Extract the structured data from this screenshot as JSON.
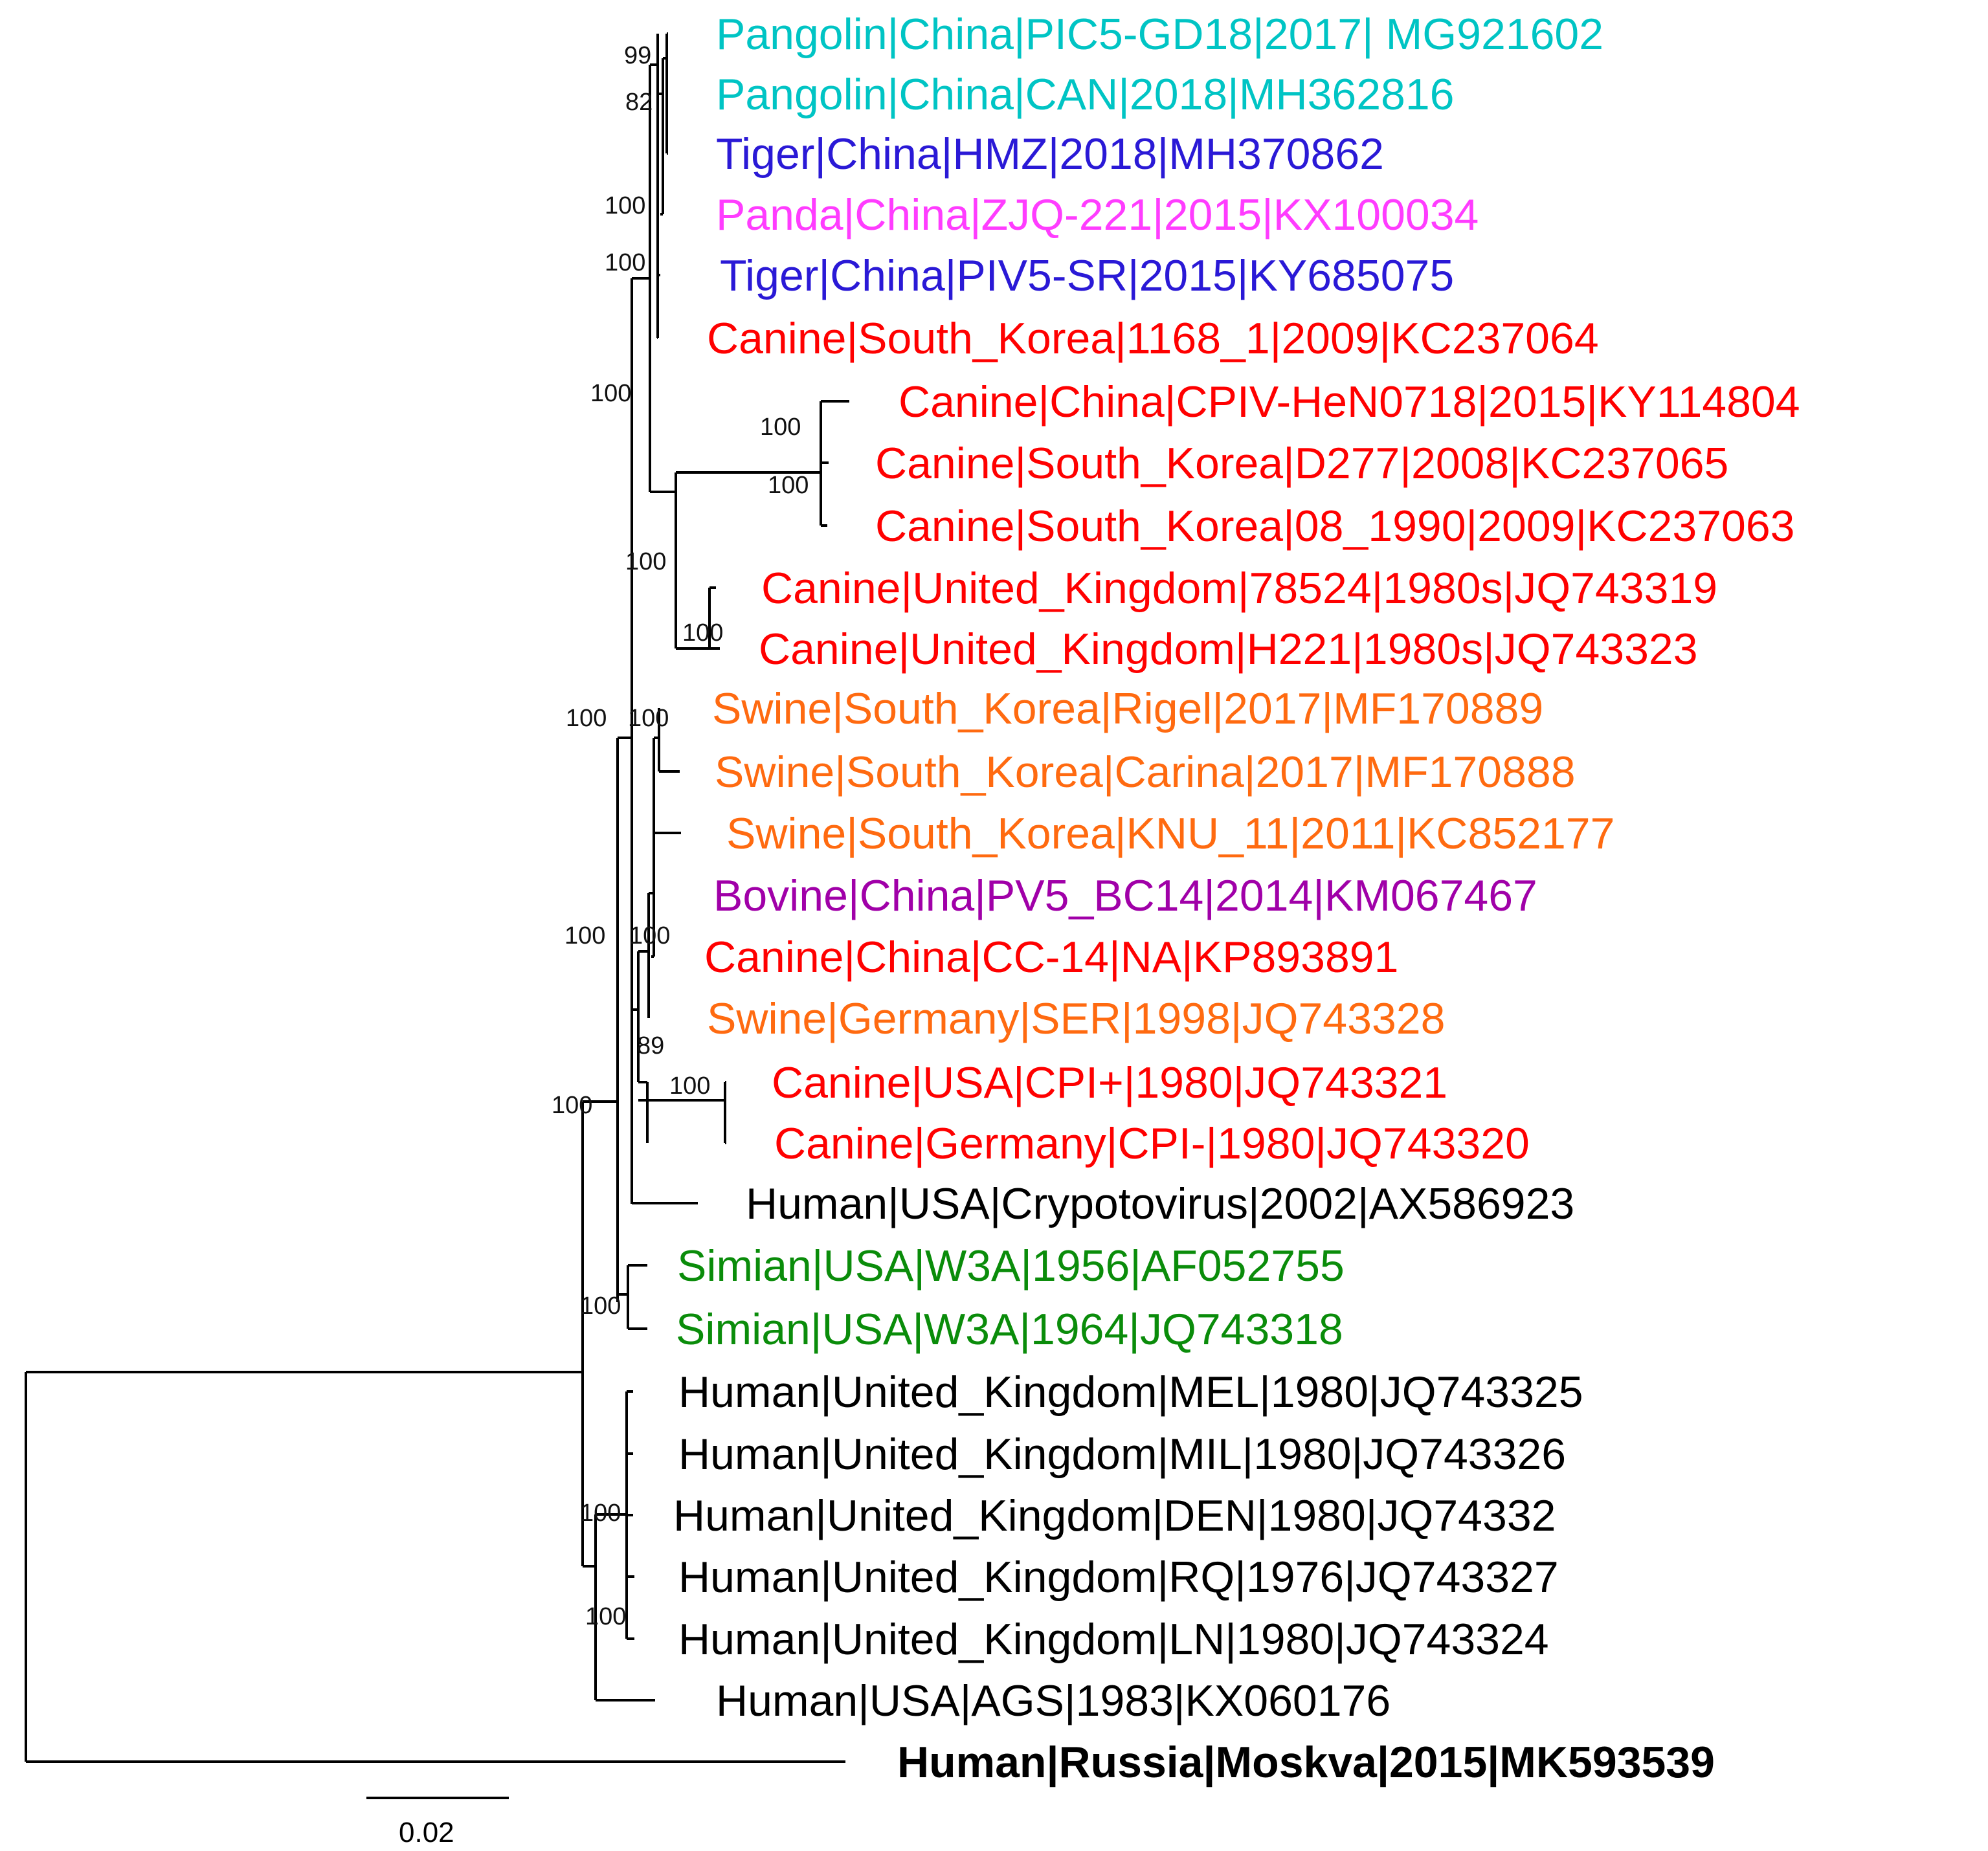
{
  "colors": {
    "pangolin": "#00c4c4",
    "tiger": "#2a19d6",
    "panda": "#ff3cff",
    "canine": "#ff0000",
    "swine": "#ff6a10",
    "bovine": "#a000a8",
    "simian": "#0a8c0a",
    "human": "#000000"
  },
  "taxa": [
    {
      "label": "Pangolin|China|PIC5-GD18|2017| MG921602",
      "group": "pangolin",
      "bold": false
    },
    {
      "label": "Pangolin|China|CAN|2018|MH362816",
      "group": "pangolin",
      "bold": false
    },
    {
      "label": "Tiger|China|HMZ|2018|MH370862",
      "group": "tiger",
      "bold": false
    },
    {
      "label": "Panda|China|ZJQ-221|2015|KX100034",
      "group": "panda",
      "bold": false
    },
    {
      "label": "Tiger|China|PIV5-SR|2015|KY685075",
      "group": "tiger",
      "bold": false
    },
    {
      "label": "Canine|South_Korea|1168_1|2009|KC237064",
      "group": "canine",
      "bold": false
    },
    {
      "label": "Canine|China|CPIV-HeN0718|2015|KY114804",
      "group": "canine",
      "bold": false
    },
    {
      "label": "Canine|South_Korea|D277|2008|KC237065",
      "group": "canine",
      "bold": false
    },
    {
      "label": "Canine|South_Korea|08_1990|2009|KC237063",
      "group": "canine",
      "bold": false
    },
    {
      "label": "Canine|United_Kingdom|78524|1980s|JQ743319",
      "group": "canine",
      "bold": false
    },
    {
      "label": "Canine|United_Kingdom|H221|1980s|JQ743323",
      "group": "canine",
      "bold": false
    },
    {
      "label": "Swine|South_Korea|Rigel|2017|MF170889",
      "group": "swine",
      "bold": false
    },
    {
      "label": "Swine|South_Korea|Carina|2017|MF170888",
      "group": "swine",
      "bold": false
    },
    {
      "label": "Swine|South_Korea|KNU_11|2011|KC852177",
      "group": "swine",
      "bold": false
    },
    {
      "label": "Bovine|China|PV5_BC14|2014|KM067467",
      "group": "bovine",
      "bold": false
    },
    {
      "label": "Canine|China|CC-14|NA|KP893891",
      "group": "canine",
      "bold": false
    },
    {
      "label": "Swine|Germany|SER|1998|JQ743328",
      "group": "swine",
      "bold": false
    },
    {
      "label": "Canine|USA|CPI+|1980|JQ743321",
      "group": "canine",
      "bold": false
    },
    {
      "label": "Canine|Germany|CPI-|1980|JQ743320",
      "group": "canine",
      "bold": false
    },
    {
      "label": "Human|USA|Crypotovirus|2002|AX586923",
      "group": "human",
      "bold": false
    },
    {
      "label": "Simian|USA|W3A|1956|AF052755",
      "group": "simian",
      "bold": false
    },
    {
      "label": "Simian|USA|W3A|1964|JQ743318",
      "group": "simian",
      "bold": false
    },
    {
      "label": "Human|United_Kingdom|MEL|1980|JQ743325",
      "group": "human",
      "bold": false
    },
    {
      "label": "Human|United_Kingdom|MIL|1980|JQ743326",
      "group": "human",
      "bold": false
    },
    {
      "label": "Human|United_Kingdom|DEN|1980|JQ74332",
      "group": "human",
      "bold": false
    },
    {
      "label": "Human|United_Kingdom|RQ|1976|JQ743327",
      "group": "human",
      "bold": false
    },
    {
      "label": "Human|United_Kingdom|LN|1980|JQ743324",
      "group": "human",
      "bold": false
    },
    {
      "label": "Human|USA|AGS|1983|KX060176",
      "group": "human",
      "bold": false
    },
    {
      "label": "Human|Russia|Moskva|2015|MK593539",
      "group": "human",
      "bold": true
    }
  ],
  "support_values": [
    "99",
    "82",
    "100",
    "100",
    "100",
    "100",
    "100",
    "100",
    "100",
    "100",
    "100",
    "100",
    "100",
    "89",
    "100",
    "100",
    "100",
    "100",
    "100"
  ],
  "scale_bar": {
    "label": "0.02"
  }
}
